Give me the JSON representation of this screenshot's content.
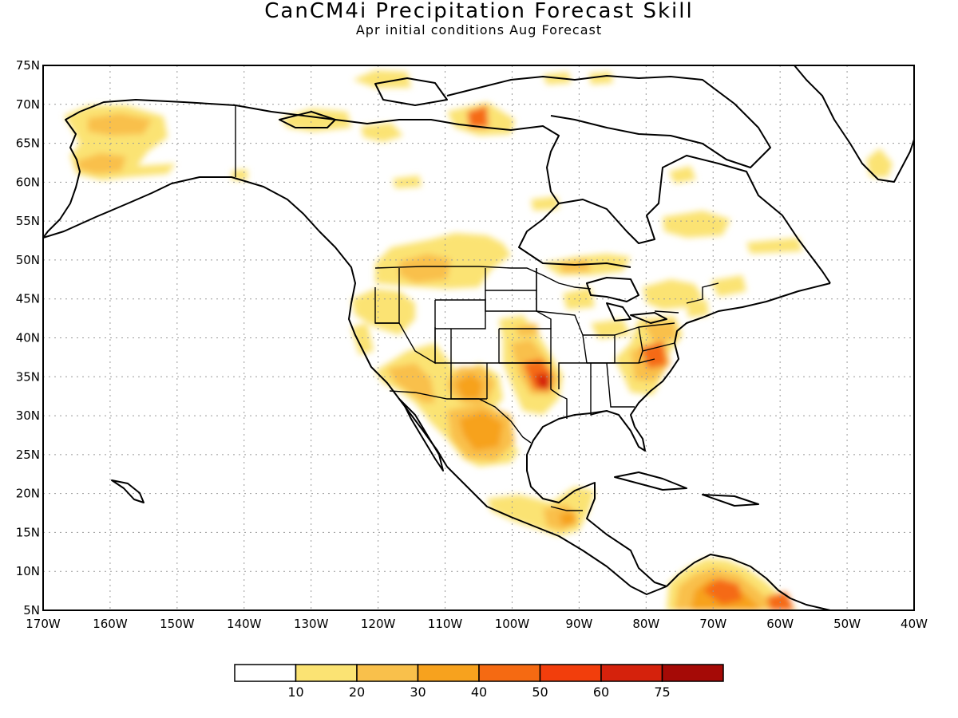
{
  "title": "CanCM4i Precipitation Forecast Skill",
  "subtitle": "Apr initial conditions   Aug Forecast",
  "map": {
    "projection": "lat-lon (cylindrical equidistant)",
    "lon_range": [
      -170,
      -40
    ],
    "lat_range": [
      5,
      75
    ],
    "grid": "dotted",
    "lat_ticks": [
      {
        "value": 75,
        "label": "75N"
      },
      {
        "value": 70,
        "label": "70N"
      },
      {
        "value": 65,
        "label": "65N"
      },
      {
        "value": 60,
        "label": "60N"
      },
      {
        "value": 55,
        "label": "55N"
      },
      {
        "value": 50,
        "label": "50N"
      },
      {
        "value": 45,
        "label": "45N"
      },
      {
        "value": 40,
        "label": "40N"
      },
      {
        "value": 35,
        "label": "35N"
      },
      {
        "value": 30,
        "label": "30N"
      },
      {
        "value": 25,
        "label": "25N"
      },
      {
        "value": 20,
        "label": "20N"
      },
      {
        "value": 15,
        "label": "15N"
      },
      {
        "value": 10,
        "label": "10N"
      },
      {
        "value": 5,
        "label": "5N"
      }
    ],
    "lon_ticks": [
      {
        "value": -170,
        "label": "170W"
      },
      {
        "value": -160,
        "label": "160W"
      },
      {
        "value": -150,
        "label": "150W"
      },
      {
        "value": -140,
        "label": "140W"
      },
      {
        "value": -130,
        "label": "130W"
      },
      {
        "value": -120,
        "label": "120W"
      },
      {
        "value": -110,
        "label": "110W"
      },
      {
        "value": -100,
        "label": "100W"
      },
      {
        "value": -90,
        "label": "90W"
      },
      {
        "value": -80,
        "label": "80W"
      },
      {
        "value": -70,
        "label": "70W"
      },
      {
        "value": -60,
        "label": "60W"
      },
      {
        "value": -50,
        "label": "50W"
      },
      {
        "value": -40,
        "label": "40W"
      }
    ],
    "skill_regions": [
      {
        "region": "Alaska west",
        "lon": -160,
        "lat": 67,
        "level": 20
      },
      {
        "region": "Alaska southwest",
        "lon": -162,
        "lat": 62,
        "level": 20
      },
      {
        "region": "Northern Canada",
        "lon": -104,
        "lat": 68,
        "level": 50
      },
      {
        "region": "Northern Great Plains",
        "lon": -112,
        "lat": 49,
        "level": 20
      },
      {
        "region": "Southwest US",
        "lon": -112,
        "lat": 33,
        "level": 30
      },
      {
        "region": "New Mexico",
        "lon": -106,
        "lat": 33,
        "level": 40
      },
      {
        "region": "Oklahoma / Arkansas",
        "lon": -95,
        "lat": 35,
        "level": 60
      },
      {
        "region": "Northern Mexico",
        "lon": -104,
        "lat": 27,
        "level": 40
      },
      {
        "region": "Virginia / Carolinas",
        "lon": -79,
        "lat": 37,
        "level": 50
      },
      {
        "region": "Mid-Atlantic",
        "lon": -78,
        "lat": 41,
        "level": 30
      },
      {
        "region": "Central America",
        "lon": -93,
        "lat": 17,
        "level": 30
      },
      {
        "region": "Northern South America",
        "lon": -67,
        "lat": 9,
        "level": 50
      },
      {
        "region": "Quebec",
        "lon": -72,
        "lat": 54,
        "level": 20
      },
      {
        "region": "Greenland south",
        "lon": -44,
        "lat": 62,
        "level": 10
      }
    ]
  },
  "colorbar": {
    "colors": [
      "#ffffff",
      "#fbe373",
      "#f9c04b",
      "#f7a21e",
      "#f56a12",
      "#f23e0c",
      "#d5220c",
      "#a50a06"
    ],
    "labels": [
      "10",
      "20",
      "30",
      "40",
      "50",
      "60",
      "75"
    ]
  }
}
